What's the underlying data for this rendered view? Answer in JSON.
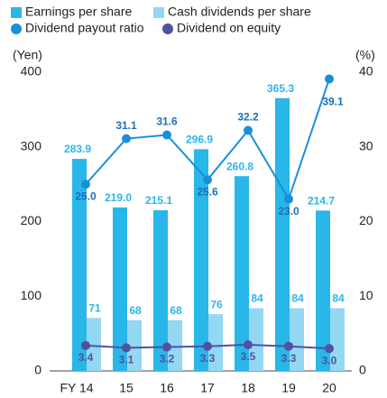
{
  "chart_data": {
    "type": "bar-line",
    "categories": [
      "FY 14",
      "15",
      "16",
      "17",
      "18",
      "19",
      "20"
    ],
    "series": [
      {
        "name": "Earnings per share",
        "color": "#29b6e8",
        "kind": "bar",
        "values": [
          283.9,
          219.0,
          215.1,
          296.9,
          260.8,
          365.3,
          214.7
        ],
        "value_labels": [
          "283.9",
          "219.0",
          "215.1",
          "296.9",
          "260.8",
          "365.3",
          "214.7"
        ]
      },
      {
        "name": "Cash dividends per share",
        "color": "#94d7f3",
        "kind": "bar",
        "values": [
          71,
          68,
          68,
          76,
          84,
          84,
          84
        ]
      },
      {
        "name": "Dividend payout ratio",
        "color": "#1a8fd8",
        "kind": "line",
        "axis": "y2",
        "values": [
          25.0,
          31.1,
          31.6,
          25.6,
          32.2,
          23.0,
          39.1
        ],
        "value_labels": [
          "25.0",
          "31.1",
          "31.6",
          "25.6",
          "32.2",
          "23.0",
          "39.1"
        ]
      },
      {
        "name": "Dividend on equity",
        "color": "#4f52a3",
        "kind": "line",
        "axis": "y2",
        "values": [
          3.4,
          3.1,
          3.2,
          3.3,
          3.5,
          3.3,
          3.0
        ],
        "value_labels": [
          "3.4",
          "3.1",
          "3.2",
          "3.3",
          "3.5",
          "3.3",
          "3.0"
        ]
      }
    ],
    "ylabel": "(Yen)",
    "y2label": "(%)",
    "ylim": [
      0,
      400
    ],
    "yticks": [
      0,
      100,
      200,
      300,
      400
    ],
    "y2lim": [
      0,
      40
    ],
    "y2ticks": [
      0,
      10,
      20,
      30,
      40
    ]
  }
}
